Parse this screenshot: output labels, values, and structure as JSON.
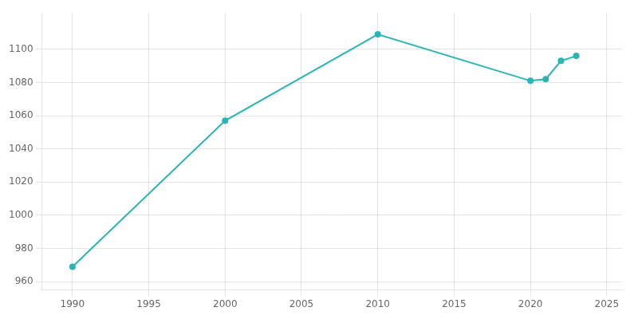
{
  "chart_data": {
    "type": "line",
    "x": [
      1990,
      2000,
      2010,
      2020,
      2021,
      2022,
      2023
    ],
    "values": [
      969,
      1057,
      1109,
      1081,
      1082,
      1093,
      1096
    ],
    "color": "#2ab5b5",
    "marker": "circle",
    "xlim": [
      1988,
      2026
    ],
    "xticks": [
      1990,
      1995,
      2000,
      2005,
      2010,
      2015,
      2020,
      2025
    ],
    "ylim": [
      955,
      1122
    ],
    "yticks": [
      960,
      980,
      1000,
      1020,
      1040,
      1060,
      1080,
      1100
    ],
    "grid": true
  }
}
